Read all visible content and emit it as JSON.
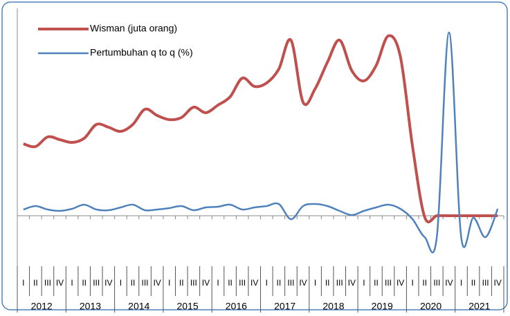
{
  "chart_data": {
    "type": "line",
    "categories": [
      "I",
      "II",
      "III",
      "IV",
      "I",
      "II",
      "III",
      "IV",
      "I",
      "II",
      "III",
      "IV",
      "I",
      "II",
      "III",
      "IV",
      "I",
      "II",
      "III",
      "IV",
      "I",
      "II",
      "III",
      "IV",
      "I",
      "II",
      "III",
      "IV",
      "I",
      "II",
      "III",
      "IV",
      "I",
      "II",
      "III",
      "IV",
      "I",
      "II",
      "III",
      "IV"
    ],
    "years": [
      "2012",
      "2013",
      "2014",
      "2015",
      "2016",
      "2017",
      "2018",
      "2019",
      "2020",
      "2021"
    ],
    "series": [
      {
        "name": "Wisman (juta orang)",
        "color": "#c0504d",
        "values": [
          2.08,
          2.0,
          2.28,
          2.2,
          2.12,
          2.24,
          2.64,
          2.56,
          2.44,
          2.64,
          3.08,
          2.9,
          2.78,
          2.84,
          3.14,
          2.98,
          3.2,
          3.44,
          3.98,
          3.74,
          3.84,
          4.24,
          5.08,
          3.28,
          3.68,
          4.44,
          5.08,
          4.2,
          3.9,
          4.34,
          5.2,
          4.6,
          2.0,
          -0.04,
          0.0,
          0.0,
          0.0,
          0.0,
          0.0,
          0.0
        ]
      },
      {
        "name": "Pertumbuhan q to q (%)",
        "color": "#4f81bd",
        "values": [
          0.18,
          0.28,
          0.18,
          0.14,
          0.2,
          0.32,
          0.18,
          0.16,
          0.24,
          0.32,
          0.16,
          0.18,
          0.22,
          0.28,
          0.16,
          0.24,
          0.26,
          0.32,
          0.18,
          0.24,
          0.28,
          0.34,
          -0.1,
          0.28,
          0.34,
          0.28,
          0.14,
          0.02,
          0.14,
          0.24,
          0.32,
          0.2,
          -0.1,
          -0.62,
          -0.6,
          5.3,
          -0.62,
          -0.06,
          -0.62,
          0.2
        ]
      }
    ],
    "ylim": [
      -1.2,
      6
    ],
    "legend": "upper left"
  }
}
